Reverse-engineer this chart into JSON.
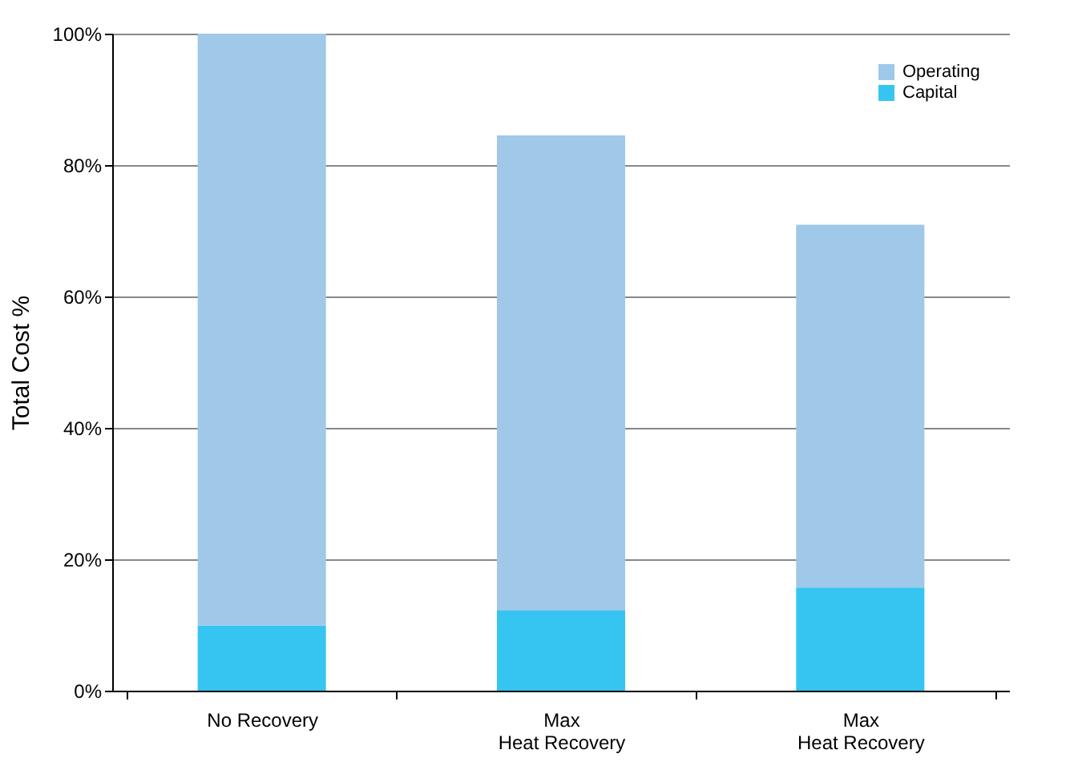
{
  "chart_data": {
    "type": "bar",
    "stacked": true,
    "ylabel": "Total Cost %",
    "categories": [
      "No Recovery",
      "Max\nHeat Recovery",
      "Max\nHeat Recovery"
    ],
    "series": [
      {
        "name": "Capital",
        "color": "#35c5f0",
        "values": [
          9.9,
          12.2,
          15.7
        ]
      },
      {
        "name": "Operating",
        "color": "#9fc8e9",
        "values": [
          90.1,
          72.3,
          55.2
        ]
      }
    ],
    "ylim": [
      0,
      100
    ],
    "yticks": [
      {
        "value": 0,
        "label": "0%"
      },
      {
        "value": 20,
        "label": "20%"
      },
      {
        "value": 40,
        "label": "40%"
      },
      {
        "value": 60,
        "label": "60%"
      },
      {
        "value": 80,
        "label": "80%"
      },
      {
        "value": 100,
        "label": "100%"
      }
    ],
    "grid": "y",
    "legend": "top right"
  }
}
